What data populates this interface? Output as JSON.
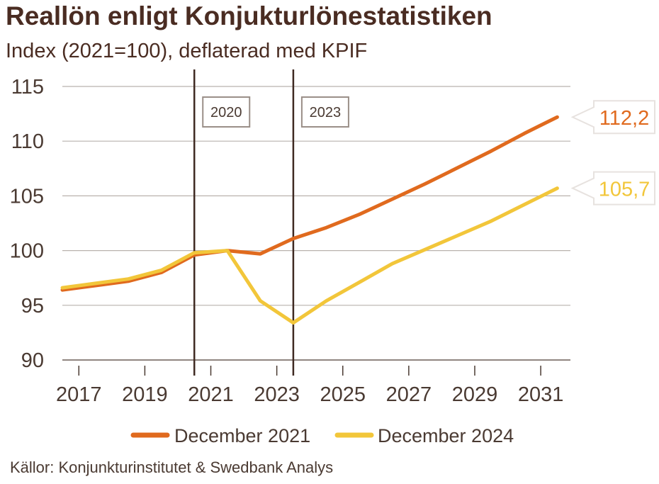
{
  "chart_data": {
    "type": "line",
    "title": "Reallön enligt Konjukturlönestatistiken",
    "subtitle": "Index (2021=100), deflaterad med KPIF",
    "source": "Källor: Konjunkturinstitutet & Swedbank Analys",
    "ylim": [
      90,
      115
    ],
    "yticks": [
      90,
      95,
      100,
      105,
      110,
      115
    ],
    "xlim": [
      2016.5,
      2031.9
    ],
    "xticks": [
      2017,
      2019,
      2021,
      2023,
      2025,
      2027,
      2029,
      2031
    ],
    "xtick_labels": [
      "2017",
      "2019",
      "2021",
      "2023",
      "2025",
      "2027",
      "2029",
      "2031"
    ],
    "grid": true,
    "vlines": [
      {
        "x": 2020.5,
        "label": "2020"
      },
      {
        "x": 2023.5,
        "label": "2023"
      }
    ],
    "series": [
      {
        "name": "December 2021",
        "color": "#e06a1e",
        "x": [
          2016.5,
          2017.5,
          2018.5,
          2019.5,
          2020.5,
          2021.5,
          2022.5,
          2023.5,
          2024.5,
          2025.5,
          2026.5,
          2027.5,
          2028.5,
          2029.5,
          2030.5,
          2031.5
        ],
        "values": [
          96.4,
          96.8,
          97.2,
          98.0,
          99.6,
          100.0,
          99.7,
          101.1,
          102.1,
          103.3,
          104.7,
          106.1,
          107.6,
          109.1,
          110.7,
          112.2
        ],
        "end_label": "112,2"
      },
      {
        "name": "December 2024",
        "color": "#f2c63a",
        "x": [
          2016.5,
          2017.5,
          2018.5,
          2019.5,
          2020.5,
          2021.5,
          2022.5,
          2023.5,
          2024.5,
          2025.5,
          2026.5,
          2027.5,
          2028.5,
          2029.5,
          2030.5,
          2031.5
        ],
        "values": [
          96.6,
          97.0,
          97.4,
          98.2,
          99.8,
          100.0,
          95.4,
          93.4,
          95.4,
          97.1,
          98.8,
          100.1,
          101.4,
          102.7,
          104.2,
          105.7
        ],
        "end_label": "105,7"
      }
    ]
  }
}
